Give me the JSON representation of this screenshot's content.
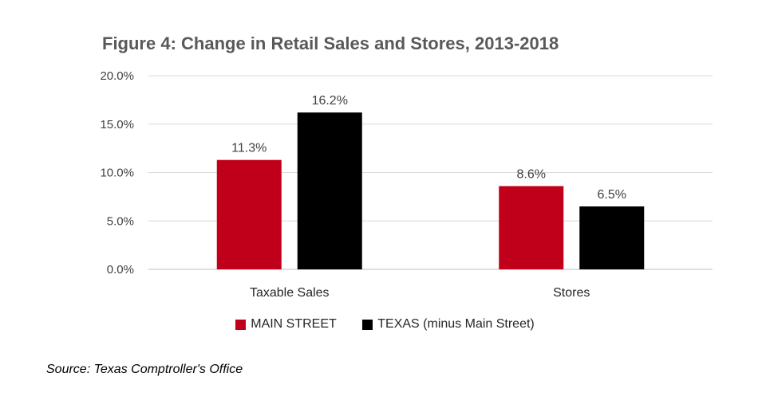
{
  "chart_data": {
    "type": "bar",
    "title": "Figure 4: Change in Retail Sales and Stores, 2013-2018",
    "categories": [
      "Taxable Sales",
      "Stores"
    ],
    "series": [
      {
        "name": "MAIN STREET",
        "values": [
          11.3,
          8.6
        ],
        "labels": [
          "11.3%",
          "8.6%"
        ],
        "color": "#C0001A"
      },
      {
        "name": "TEXAS (minus Main Street)",
        "values": [
          16.2,
          6.5
        ],
        "labels": [
          "16.2%",
          "6.5%"
        ],
        "color": "#000000"
      }
    ],
    "ylim": [
      0,
      20
    ],
    "yticks": [
      0,
      5,
      10,
      15,
      20
    ],
    "ytick_labels": [
      "0.0%",
      "5.0%",
      "10.0%",
      "15.0%",
      "20.0%"
    ],
    "grid": true,
    "legend": "bottom",
    "source": "Source: Texas Comptroller's Office"
  }
}
